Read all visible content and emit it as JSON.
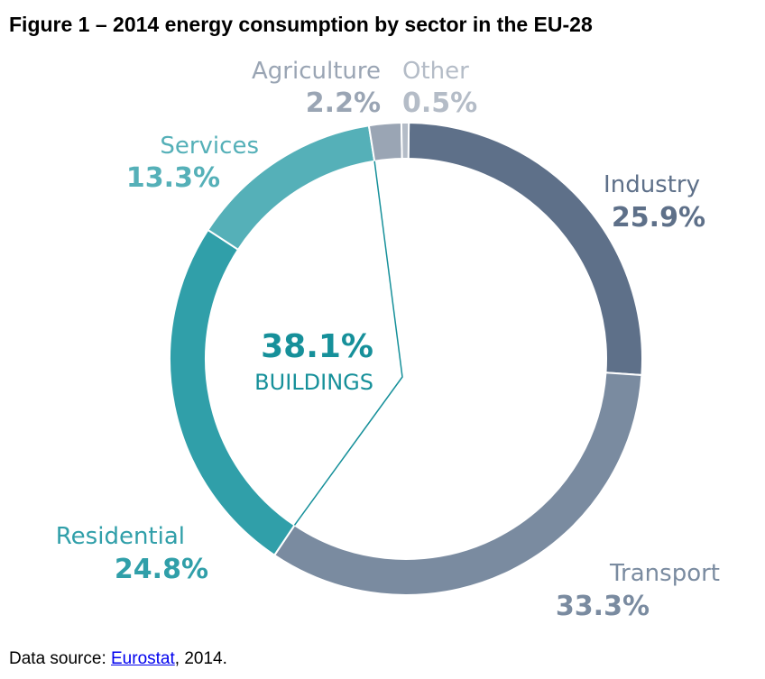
{
  "chart_data": {
    "type": "pie",
    "variant": "donut",
    "title": "Figure 1 – 2014 energy consumption by sector in the EU-28",
    "categories": [
      "Industry",
      "Transport",
      "Residential",
      "Services",
      "Agriculture",
      "Other"
    ],
    "values": [
      25.9,
      33.3,
      24.8,
      13.3,
      2.2,
      0.5
    ],
    "value_labels": [
      "25.9%",
      "33.3%",
      "24.8%",
      "13.3%",
      "2.2%",
      "0.5%"
    ],
    "colors": [
      "#5e7089",
      "#7a8ba0",
      "#309fa9",
      "#55b0b8",
      "#9aa5b4",
      "#b4bcc7"
    ],
    "label_colors": [
      "#5e7089",
      "#7a8ba0",
      "#309fa9",
      "#55b0b8",
      "#9aa5b4",
      "#b4bcc7"
    ],
    "annotation": {
      "value": "38.1%",
      "label": "BUILDINGS",
      "color": "#16909a"
    }
  },
  "source": {
    "prefix": "Data source: ",
    "link": "Eurostat",
    "suffix": ", 2014."
  }
}
